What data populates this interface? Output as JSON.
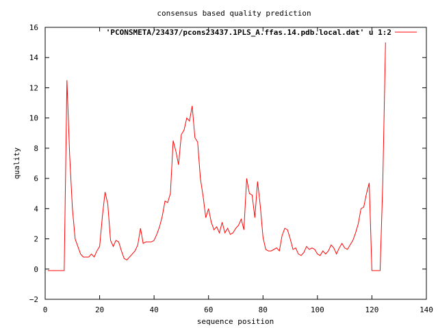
{
  "chart_data": {
    "type": "line",
    "title": "consensus based quality prediction",
    "xlabel": "sequence position",
    "ylabel": "quality",
    "xlim": [
      0,
      140
    ],
    "ylim": [
      -2,
      16
    ],
    "x_ticks": [
      0,
      20,
      40,
      60,
      80,
      100,
      120,
      140
    ],
    "y_ticks": [
      -2,
      0,
      2,
      4,
      6,
      8,
      10,
      12,
      14,
      16
    ],
    "x_tick_labels": [
      "0",
      "20",
      "40",
      "60",
      "80",
      "100",
      "120",
      "140"
    ],
    "y_tick_labels": [
      "−2",
      "0",
      "2",
      "4",
      "6",
      "8",
      "10",
      "12",
      "14",
      "16"
    ],
    "grid": false,
    "legend_position": "top-right",
    "series": [
      {
        "name": "'PCONSMETA/23437/pcons23437.1PLS_A.ffas.14.pdb.local.dat' u 1:2",
        "color": "#ff0000",
        "x": [
          1,
          2,
          3,
          4,
          5,
          6,
          7,
          8,
          9,
          10,
          11,
          12,
          13,
          14,
          15,
          16,
          17,
          18,
          19,
          20,
          21,
          22,
          23,
          24,
          25,
          26,
          27,
          28,
          29,
          30,
          31,
          32,
          33,
          34,
          35,
          36,
          37,
          38,
          39,
          40,
          41,
          42,
          43,
          44,
          45,
          46,
          47,
          48,
          49,
          50,
          51,
          52,
          53,
          54,
          55,
          56,
          57,
          58,
          59,
          60,
          61,
          62,
          63,
          64,
          65,
          66,
          67,
          68,
          69,
          70,
          71,
          72,
          73,
          74,
          75,
          76,
          77,
          78,
          79,
          80,
          81,
          82,
          83,
          84,
          85,
          86,
          87,
          88,
          89,
          90,
          91,
          92,
          93,
          94,
          95,
          96,
          97,
          98,
          99,
          100,
          101,
          102,
          103,
          104,
          105,
          106,
          107,
          108,
          109,
          110,
          111,
          112,
          113,
          114,
          115,
          116,
          117,
          118,
          119,
          120,
          121,
          122,
          123,
          124,
          125
        ],
        "values": [
          -0.1,
          -0.1,
          -0.1,
          -0.1,
          -0.1,
          -0.1,
          -0.1,
          12.5,
          7.5,
          4.0,
          2.0,
          1.5,
          1.0,
          0.8,
          0.8,
          0.8,
          1.0,
          0.8,
          1.2,
          1.5,
          3.5,
          5.1,
          4.3,
          1.9,
          1.5,
          1.9,
          1.8,
          1.2,
          0.7,
          0.6,
          0.8,
          1.0,
          1.2,
          1.6,
          2.7,
          1.7,
          1.8,
          1.8,
          1.8,
          1.9,
          2.3,
          2.8,
          3.5,
          4.5,
          4.4,
          5.0,
          8.5,
          7.8,
          6.9,
          8.9,
          9.2,
          10.0,
          9.8,
          10.8,
          8.7,
          8.4,
          6.0,
          4.8,
          3.4,
          4.0,
          3.1,
          2.6,
          2.8,
          2.4,
          3.1,
          2.4,
          2.7,
          2.3,
          2.4,
          2.7,
          2.9,
          3.3,
          2.6,
          6.0,
          5.0,
          4.9,
          3.4,
          5.8,
          4.2,
          2.1,
          1.3,
          1.2,
          1.2,
          1.3,
          1.4,
          1.2,
          2.2,
          2.7,
          2.6,
          2.0,
          1.3,
          1.4,
          1.0,
          0.9,
          1.1,
          1.5,
          1.3,
          1.4,
          1.3,
          1.0,
          0.9,
          1.2,
          1.0,
          1.2,
          1.6,
          1.4,
          1.0,
          1.4,
          1.7,
          1.4,
          1.3,
          1.6,
          1.9,
          2.4,
          3.0,
          4.0,
          4.1,
          5.0,
          5.7,
          -0.1,
          -0.1,
          -0.1,
          -0.1,
          5.7,
          15.0
        ]
      }
    ]
  }
}
